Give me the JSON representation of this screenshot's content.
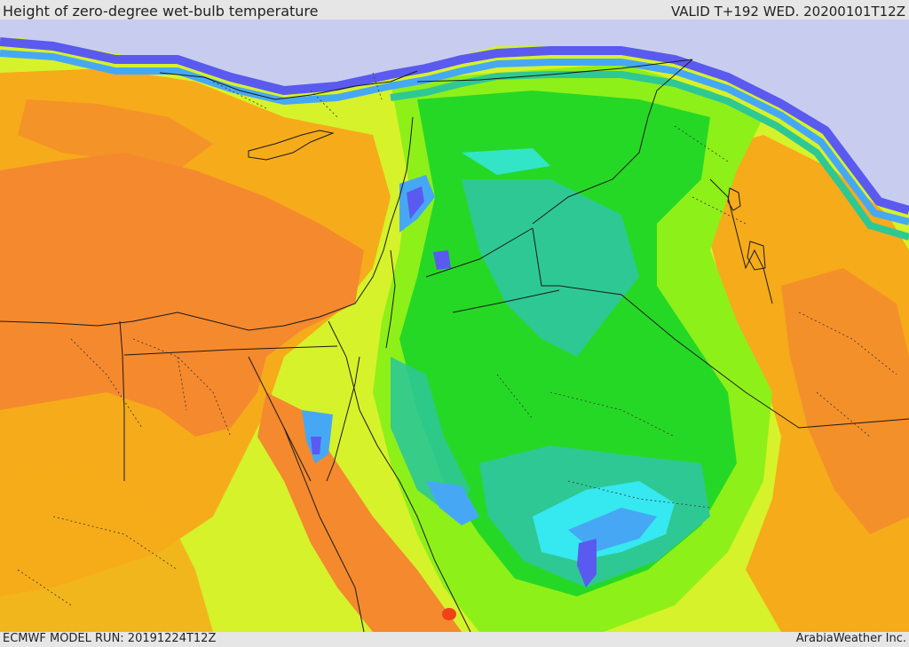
{
  "header": {
    "title": "Height of zero-degree wet-bulb temperature",
    "valid": "VALID T+192 WED. 20200101T12Z"
  },
  "footer": {
    "model_run": "ECMWF MODEL RUN: 20191224T12Z",
    "credit": "ArabiaWeather Inc."
  },
  "map": {
    "region": "Eastern Mediterranean and Middle East",
    "colors": {
      "sea_north": "#c8cdf0",
      "blue": "#5a5af0",
      "light_blue": "#46a8f5",
      "cyan": "#36e8f0",
      "teal": "#2ec894",
      "green": "#26d826",
      "light_green": "#8ef019",
      "yellow_green": "#d6f22a",
      "yellow": "#f2df22",
      "orange": "#f6ab1a",
      "dark_orange": "#f4892e",
      "red": "#f04218",
      "border": "#1a1a1a"
    }
  }
}
